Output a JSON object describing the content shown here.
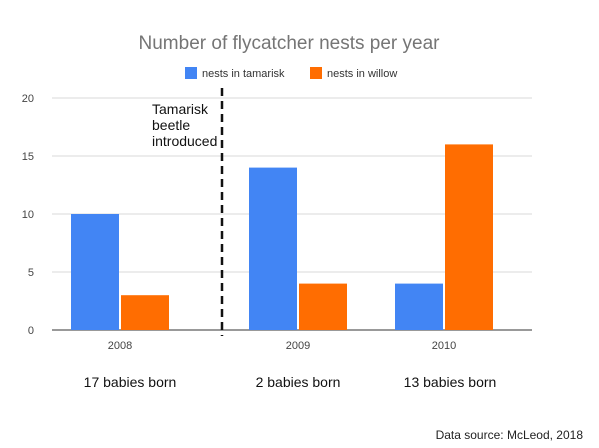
{
  "chart_data": {
    "type": "bar",
    "title": "Number of flycatcher nests per year",
    "categories": [
      "2008",
      "2009",
      "2010"
    ],
    "series": [
      {
        "name": "nests in tamarisk",
        "values": [
          10,
          14,
          4
        ],
        "color": "#4285f4"
      },
      {
        "name": "nests in willow",
        "values": [
          3,
          4,
          16
        ],
        "color": "#ff6d01"
      }
    ],
    "ylim": [
      0,
      20
    ],
    "yticks": [
      "0",
      "5",
      "10",
      "15",
      "20"
    ],
    "grid": true,
    "legend_position": "top-center",
    "annotations": {
      "event_line": {
        "label_lines": [
          "Tamarisk",
          "beetle",
          "introduced"
        ],
        "style": "dashed"
      },
      "category_notes": [
        "17 babies born",
        "2 babies born",
        "13 babies born"
      ]
    },
    "source": "Data source: McLeod, 2018"
  }
}
